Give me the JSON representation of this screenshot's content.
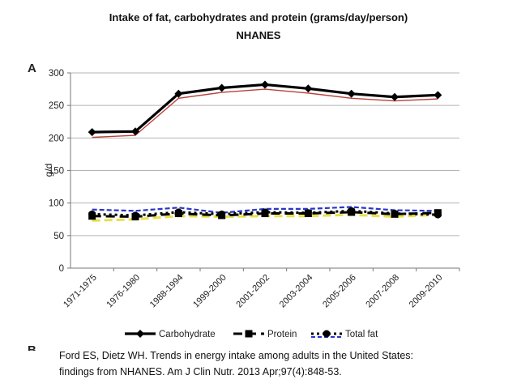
{
  "slide": {
    "title_line1": "Intake of fat, carbohydrates and protein (grams/day/person)",
    "title_line2": "NHANES",
    "panel_a": "A",
    "panel_b": "B",
    "citation_line1": "Ford ES, Dietz WH. Trends in energy intake among adults in the United States:",
    "citation_line2": "findings from NHANES. Am J Clin Nutr. 2013 Apr;97(4):848-53."
  },
  "chart_data": {
    "type": "line",
    "title": "",
    "xlabel": "",
    "ylabel": "g/d",
    "ylim": [
      0,
      300
    ],
    "yticks": [
      0,
      50,
      100,
      150,
      200,
      250,
      300
    ],
    "grid": true,
    "legend_position": "bottom",
    "categories": [
      "1971-1975",
      "1976-1980",
      "1988-1994",
      "1999-2000",
      "2001-2002",
      "2003-2004",
      "2005-2006",
      "2007-2008",
      "2009-2010"
    ],
    "series": [
      {
        "name": "Carbohydrate",
        "color": "#000000",
        "marker": "diamond",
        "style": "solid",
        "values": [
          209,
          210,
          268,
          277,
          282,
          276,
          268,
          263,
          266
        ]
      },
      {
        "name": "",
        "color": "#b8403a",
        "marker": "none",
        "style": "solid",
        "values": [
          201,
          204,
          261,
          270,
          275,
          269,
          261,
          257,
          260
        ]
      },
      {
        "name": "Protein",
        "color": "#000000",
        "marker": "square",
        "style": "dash",
        "values": [
          80,
          79,
          84,
          81,
          84,
          84,
          86,
          83,
          85
        ]
      },
      {
        "name": "",
        "color": "#e8e04a",
        "marker": "none",
        "style": "dash",
        "values": [
          73,
          75,
          80,
          79,
          80,
          80,
          82,
          79,
          82
        ]
      },
      {
        "name": "Total fat",
        "color": "#000000",
        "marker": "circle",
        "style": "dot",
        "values": [
          83,
          81,
          86,
          83,
          86,
          85,
          88,
          84,
          82
        ]
      },
      {
        "name": "",
        "color": "#2a35c8",
        "marker": "none",
        "style": "dash",
        "values": [
          90,
          88,
          93,
          85,
          91,
          91,
          94,
          89,
          88
        ]
      }
    ]
  }
}
